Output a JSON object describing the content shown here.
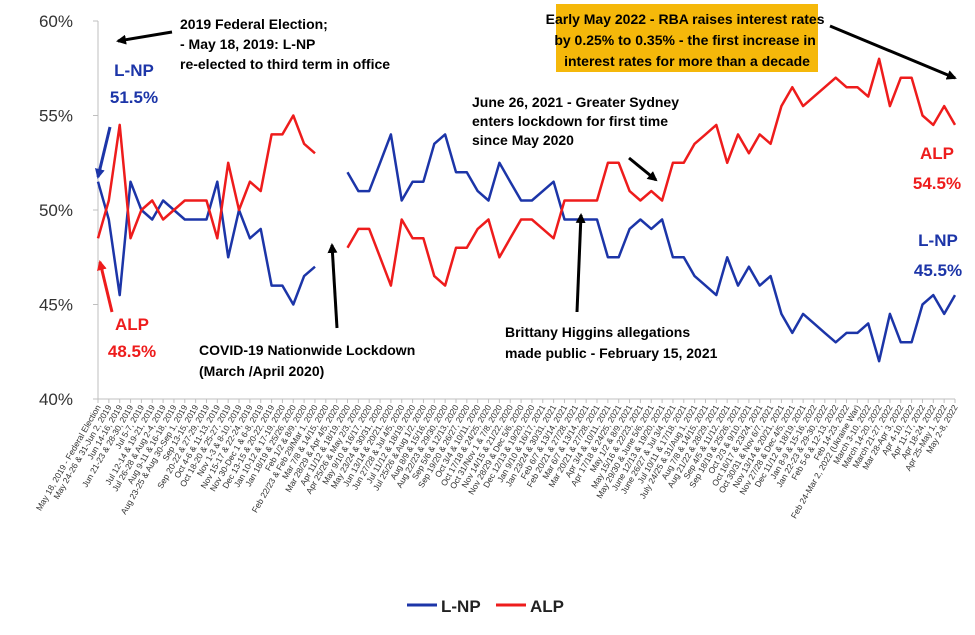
{
  "chart_data": {
    "type": "line",
    "ylim": [
      40,
      60
    ],
    "y_ticks": [
      "40%",
      "45%",
      "50%",
      "55%",
      "60%"
    ],
    "grid": false,
    "legend": "bottom",
    "categories": [
      "May 18, 2019 - Federal Election",
      "May 24-26 & 31-Jun 2, 2019",
      "Jun 14-16, 2019",
      "Jun 21-23 & 28-30, 2019",
      "Jul 5-7, 2019",
      "Jul 12-14 & 19-21, 2019",
      "Jul 26-28 & Aug 2-4, 2019",
      "Aug 9-11 & 16-18, 2019",
      "Aug 23-25 & Aug 30-Sep 1, 2019",
      "Sep 13-15, 2019",
      "Sep 20-22 & 27-29, 2019",
      "Oct 4-6 & 11-13, 2019",
      "Oct 18-20 & 25-27, 2019",
      "Nov 1-3 & 8-10, 2019",
      "Nov 15-17 & 22-24, 2019",
      "Nov 30-Dec 1 & 6-8, 2019",
      "Dec 13-15 & 20-22, 2019",
      "Jan 10-12 & 17-19, 2020",
      "Jan 18/19 & 25/26, 2020",
      "Feb 1/2 & 8/9, 2020",
      "Feb 22/23 & Feb 29/Mar 1, 2020",
      "Mar 7/8 & 14/15, 2020",
      "Mar 28/29 & Apr 4/5, 2020",
      "Apr 11/12 & 18/19, 2020",
      "Apr 25/26 & May 2/3, 2020",
      "May 9/10 & 16/17, 2020",
      "May 23/24 & 30/31, 2020",
      "Jun 13/14 & 20/21, 2020",
      "Jun 27/28 & Jul 4/5, 2020",
      "Jul 11/12 & 18/19, 2020",
      "Jul 25/26 & Aug 1/2, 2020",
      "Aug 8/9 & 15/16, 2020",
      "Aug 22/23 & 29/30, 2020",
      "Sep 5/6 & 12/13, 2020",
      "Sep 19/20 & 26/27, 2020",
      "Oct 3/4 & 10/11, 2020",
      "Oct 17/18 & 24/25, 2020",
      "Oct 31/Nov 1 & 7/8, 2020",
      "Nov 14/15 & 21/22, 2020",
      "Nov 28/29 & Dec 5/6, 2020",
      "Dec 12/13 & 19/20, 2020",
      "Jan 9/10 & 16/17, 2021",
      "Jan 23/24 & 30/31, 2021",
      "Feb 6/7 & 13/14, 2021",
      "Feb 20/21 & 27/28, 2021",
      "Mar 6/7 & 13/14, 2021",
      "Mar 20/21 & 27/28, 2021",
      "Apr 3/4 & 10/11, 2021",
      "Apr 17/18 & 24/25, 2021",
      "May 1/2 & 8/9, 2021",
      "May 15/16 & 22/23, 2021",
      "May 29/30 & June 5/6, 2021",
      "June 12/13 & 19/20, 2021",
      "June 26/27 & Jul 3/4, 2021",
      "Jul 10/11 & 17/18, 2021",
      "July 24/25 & 31/Aug 1, 2021",
      "Aug 7/8 & 14/15, 2021",
      "Aug 21/22 & 28/29, 2021",
      "Sep 4/5 & 11/12, 2021",
      "Sep 18/19 & 25/26, 2021",
      "Oct 2/3 & 9/10, 2021",
      "Oct 16/17 & 23/24, 2021",
      "Oct 30/31 & Nov 6/7, 2021",
      "Nov 13/14 & 20/21, 2021",
      "Nov 27/28 & Dec 4/5, 2021",
      "Dec 11/12 & 18/19, 2021",
      "Jan 8-9 & 15-16, 2022",
      "Jan 22-23 & 29-30, 2022",
      "Feb 5-6 & 12-13, 2022",
      "Feb 14-23, 2022",
      "Feb 24-Mar 2, 2022 (Ukraine War)",
      "March 3-10, 2022",
      "March 14-20, 2022",
      "March 21-27, 2022",
      "Mar 28-Apr 3, 2022",
      "Apr 4-10, 2022",
      "Apr 11-17, 2022",
      "Apr 18-24, 2022",
      "Apr 25-May 1, 2022",
      "May 2-8, 2022"
    ],
    "series": [
      {
        "name": "L-NP",
        "color": "#1c35a8",
        "values": [
          51.5,
          49.5,
          45.5,
          51.5,
          50,
          49.5,
          50.5,
          50,
          49.5,
          49.5,
          49.5,
          51.5,
          47.5,
          50,
          48.5,
          49,
          46,
          46,
          45,
          46.5,
          47,
          null,
          null,
          52,
          51,
          51,
          52.5,
          54,
          50.5,
          51.5,
          51.5,
          53.5,
          54,
          52,
          52,
          51,
          50.5,
          52.5,
          51.5,
          50.5,
          50.5,
          51,
          51.5,
          49.5,
          49.5,
          49.5,
          49.5,
          47.5,
          47.5,
          49,
          49.5,
          49,
          49.5,
          47.5,
          47.5,
          46.5,
          46,
          45.5,
          47.5,
          46,
          47,
          46,
          46.5,
          44.5,
          43.5,
          44.5,
          44,
          43.5,
          43,
          43.5,
          43.5,
          44,
          42,
          44.5,
          43,
          43,
          45,
          45.5,
          44.5,
          45.5
        ]
      },
      {
        "name": "ALP",
        "color": "#ee1c1c",
        "values": [
          48.5,
          50.5,
          54.5,
          48.5,
          50,
          50.5,
          49.5,
          50,
          50.5,
          50.5,
          50.5,
          48.5,
          52.5,
          50,
          51.5,
          51,
          54,
          54,
          55,
          53.5,
          53,
          null,
          null,
          48,
          49,
          49,
          47.5,
          46,
          49.5,
          48.5,
          48.5,
          46.5,
          46,
          48,
          48,
          49,
          49.5,
          47.5,
          48.5,
          49.5,
          49.5,
          49,
          48.5,
          50.5,
          50.5,
          50.5,
          50.5,
          52.5,
          52.5,
          51,
          50.5,
          51,
          50.5,
          52.5,
          52.5,
          53.5,
          54,
          54.5,
          52.5,
          54,
          53,
          54,
          53.5,
          55.5,
          56.5,
          55.5,
          56,
          56.5,
          57,
          56.5,
          56.5,
          56,
          58,
          55.5,
          57,
          57,
          55,
          54.5,
          55.5,
          54.5
        ]
      }
    ]
  },
  "annotations": {
    "election_lines": [
      "2019 Federal Election;",
      "- May 18, 2019: L-NP",
      "re-elected to third term in office"
    ],
    "lnp_start_name": "L-NP",
    "lnp_start_value": "51.5%",
    "alp_start_name": "ALP",
    "alp_start_value": "48.5%",
    "covid_lines": [
      "COVID-19 Nationwide Lockdown",
      "(March /April 2020)"
    ],
    "higgins_lines": [
      "Brittany Higgins allegations",
      "made public - February 15, 2021"
    ],
    "sydney_lines": [
      "June 26, 2021 - Greater Sydney",
      "enters lockdown for first time",
      "since May 2020"
    ],
    "rba_lines": [
      "Early May 2022 - RBA raises interest rates",
      "by 0.25% to 0.35% - the first increase in",
      "interest rates for more than a decade"
    ],
    "alp_end_name": "ALP",
    "alp_end_value": "54.5%",
    "lnp_end_name": "L-NP",
    "lnp_end_value": "45.5%"
  },
  "colors": {
    "lnp": "#1c35a8",
    "alp": "#ee1c1c",
    "rba_box": "#f5b80a",
    "axis": "#bfbfbf"
  }
}
